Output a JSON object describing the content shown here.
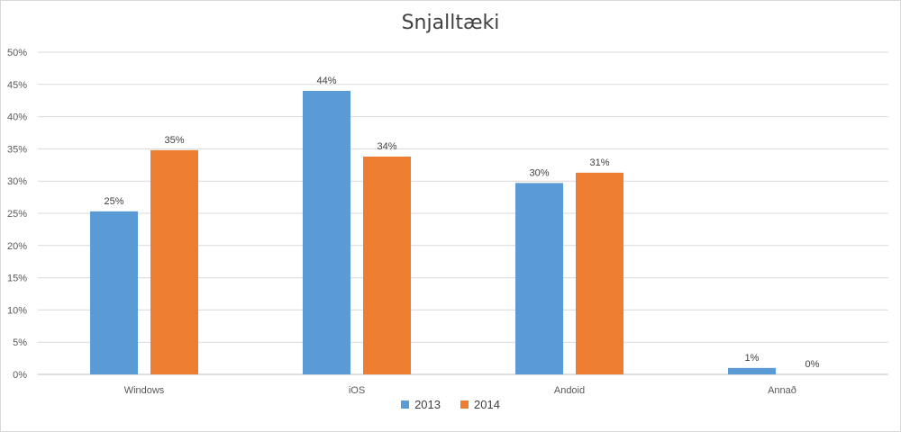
{
  "chart_data": {
    "type": "bar",
    "title": "Snjalltæki",
    "xlabel": "",
    "ylabel": "",
    "categories": [
      "Windows",
      "iOS",
      "Andoid",
      "Annað"
    ],
    "series": [
      {
        "name": "2013",
        "values": [
          25.3,
          44.0,
          29.7,
          1.0
        ],
        "labels": [
          "25%",
          "44%",
          "30%",
          "1%"
        ],
        "color": "#5b9bd5"
      },
      {
        "name": "2014",
        "values": [
          34.8,
          33.8,
          31.3,
          0.0
        ],
        "labels": [
          "35%",
          "34%",
          "31%",
          "0%"
        ],
        "color": "#ed7d31"
      }
    ],
    "ylim": [
      0,
      50
    ],
    "yticks": [
      "0%",
      "5%",
      "10%",
      "15%",
      "20%",
      "25%",
      "30%",
      "35%",
      "40%",
      "45%",
      "50%"
    ],
    "grid": true,
    "legend": "bottom"
  }
}
